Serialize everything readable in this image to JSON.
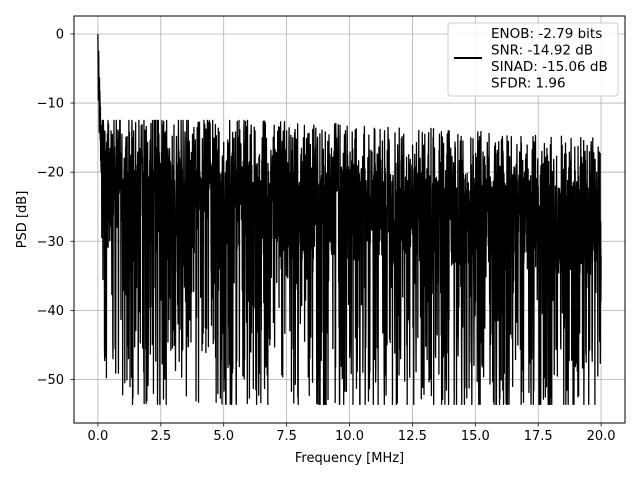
{
  "chart_data": {
    "type": "line",
    "title": "",
    "xlabel": "Frequency [MHz]",
    "ylabel": "PSD [dB]",
    "xlim": [
      -0.95,
      20.95
    ],
    "ylim": [
      -56.3,
      2.6
    ],
    "grid": true,
    "legend_position": "top-right",
    "xticks": [
      0.0,
      2.5,
      5.0,
      7.5,
      10.0,
      12.5,
      15.0,
      17.5,
      20.0
    ],
    "xtick_labels": [
      "0.0",
      "2.5",
      "5.0",
      "7.5",
      "10.0",
      "12.5",
      "15.0",
      "17.5",
      "20.0"
    ],
    "yticks": [
      0,
      -10,
      -20,
      -30,
      -40,
      -50
    ],
    "ytick_labels": [
      "0",
      "−10",
      "−20",
      "−30",
      "−40",
      "−50"
    ],
    "series": [
      {
        "color": "#000000",
        "x_range": [
          0,
          20
        ],
        "noise_floor_db": [
          -24,
          -28
        ],
        "peak_db": 0,
        "max_db": -12.5,
        "min_db": -53.6
      }
    ],
    "legend_lines": [
      "ENOB: -2.79 bits",
      "SNR: -14.92 dB",
      "SINAD: -15.06 dB",
      "SFDR: 1.96"
    ]
  }
}
